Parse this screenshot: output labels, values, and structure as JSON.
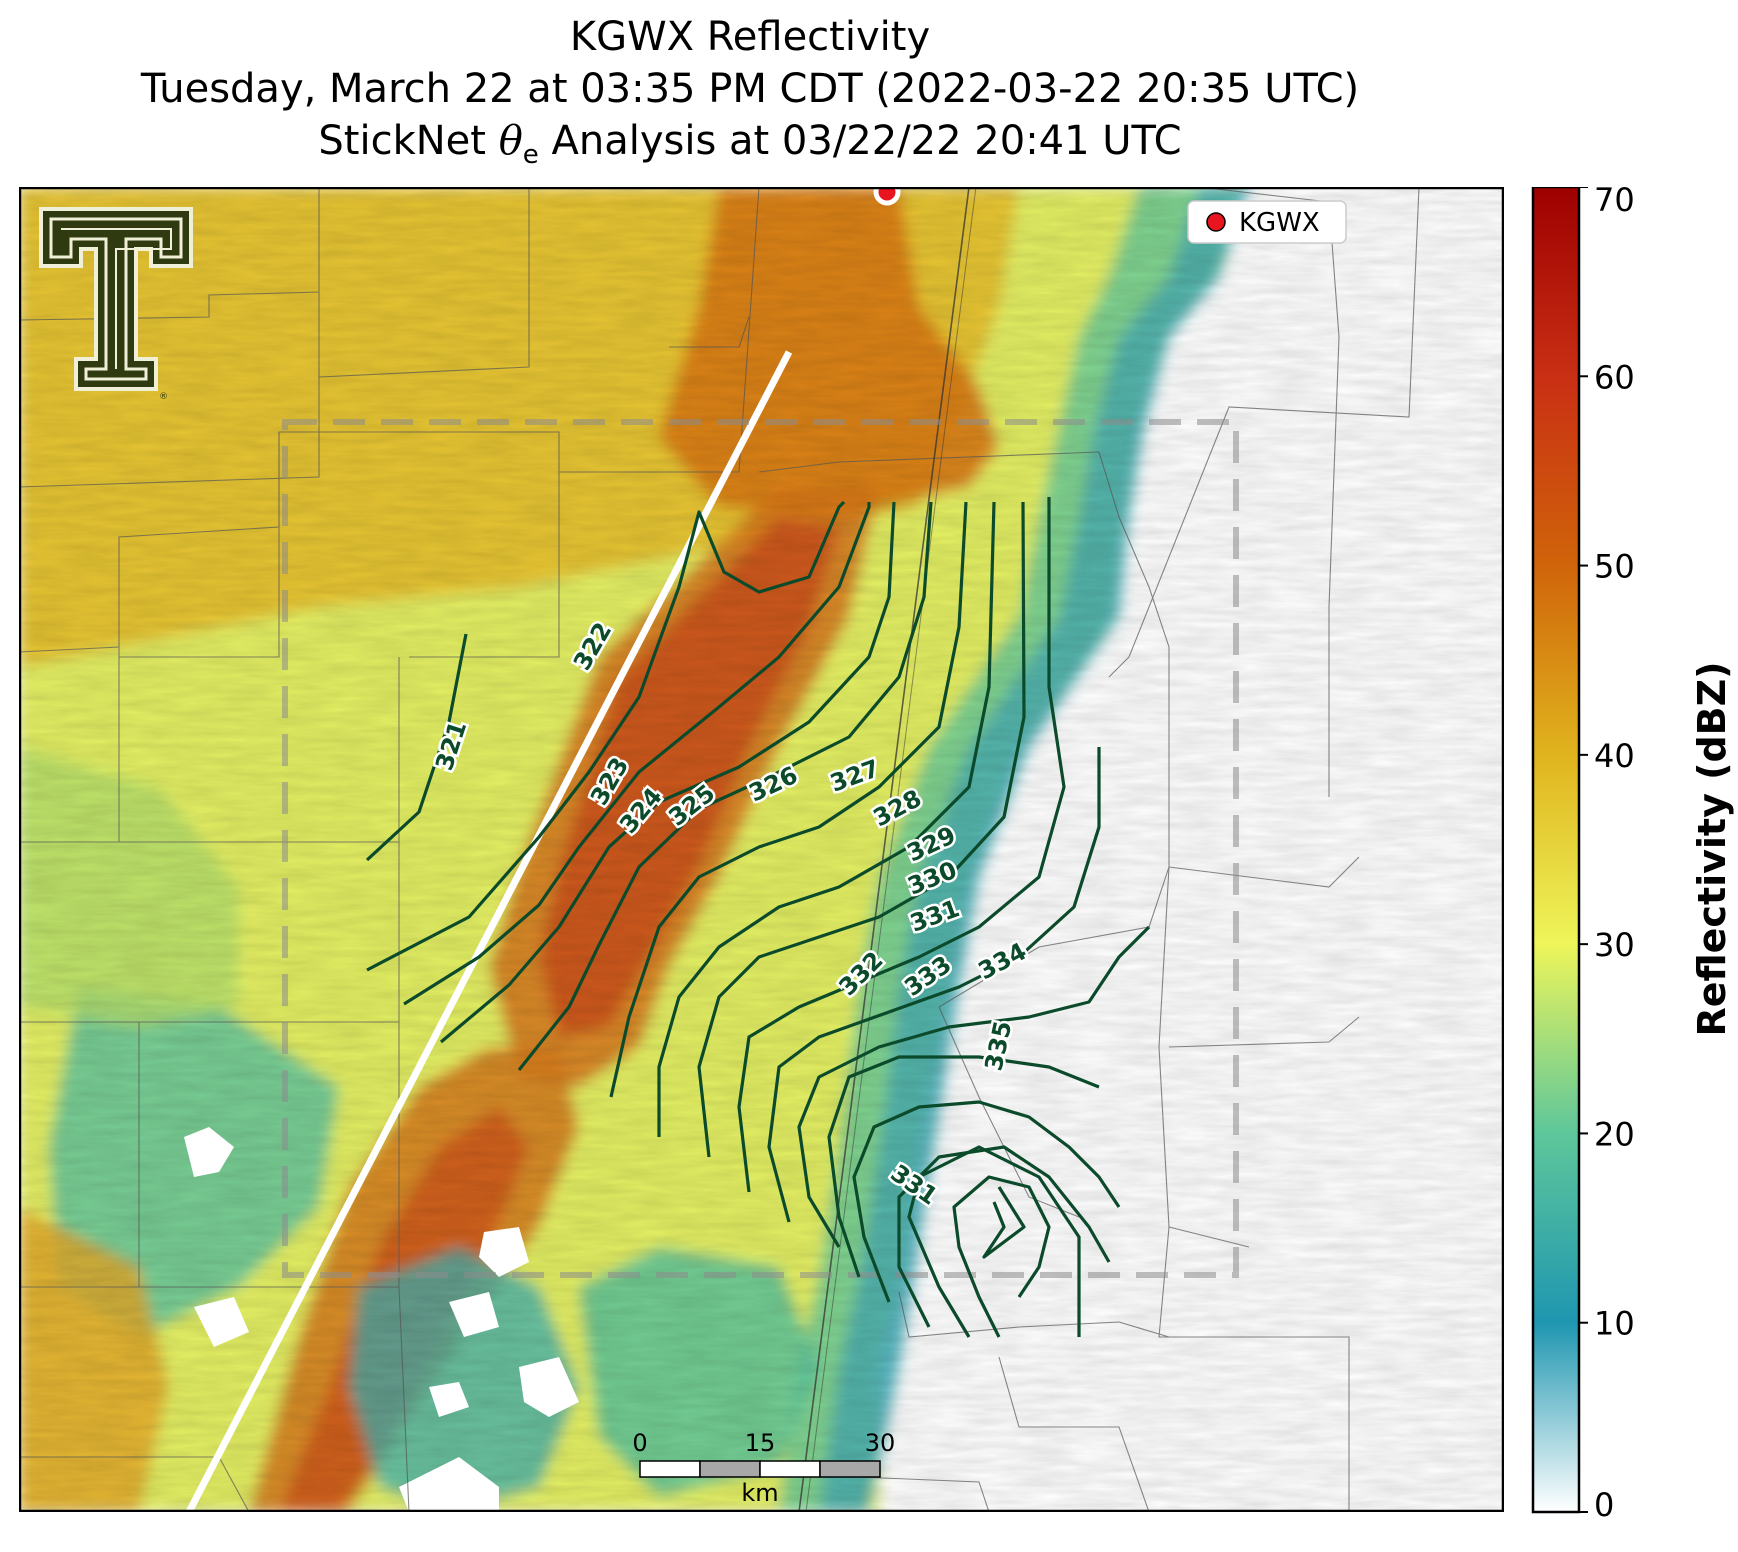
{
  "title": {
    "line1": "KGWX Reflectivity",
    "line2": "Tuesday, March 22 at 03:35 PM CDT (2022-03-22 20:35 UTC)",
    "line3_prefix": "StickNet ",
    "line3_symbol": "θ",
    "line3_sub": "e",
    "line3_suffix": " Analysis at 03/22/22 20:41 UTC"
  },
  "legend": {
    "label": "KGWX",
    "marker_color": "#e8141e"
  },
  "colorbar": {
    "title": "Reflectivity (dBZ)",
    "min": 0,
    "max": 70,
    "ticks": [
      "0",
      "10",
      "20",
      "30",
      "40",
      "50",
      "60",
      "70"
    ],
    "colors": [
      "#ffffff",
      "#1f96b0",
      "#5ec79a",
      "#eef55a",
      "#e0b41e",
      "#d0640a",
      "#c92f14",
      "#9e0000"
    ]
  },
  "scale_bar": {
    "ticks": [
      "0",
      "15",
      "30"
    ],
    "unit": "km"
  },
  "contours": {
    "color": "#0b4a2a",
    "labels": [
      "321",
      "322",
      "323",
      "324",
      "325",
      "326",
      "327",
      "328",
      "329",
      "330",
      "331",
      "332",
      "333",
      "334",
      "335",
      "331"
    ]
  },
  "logo": {
    "icon": "texas-tech-double-t-logo",
    "color": "#2f3a10"
  }
}
